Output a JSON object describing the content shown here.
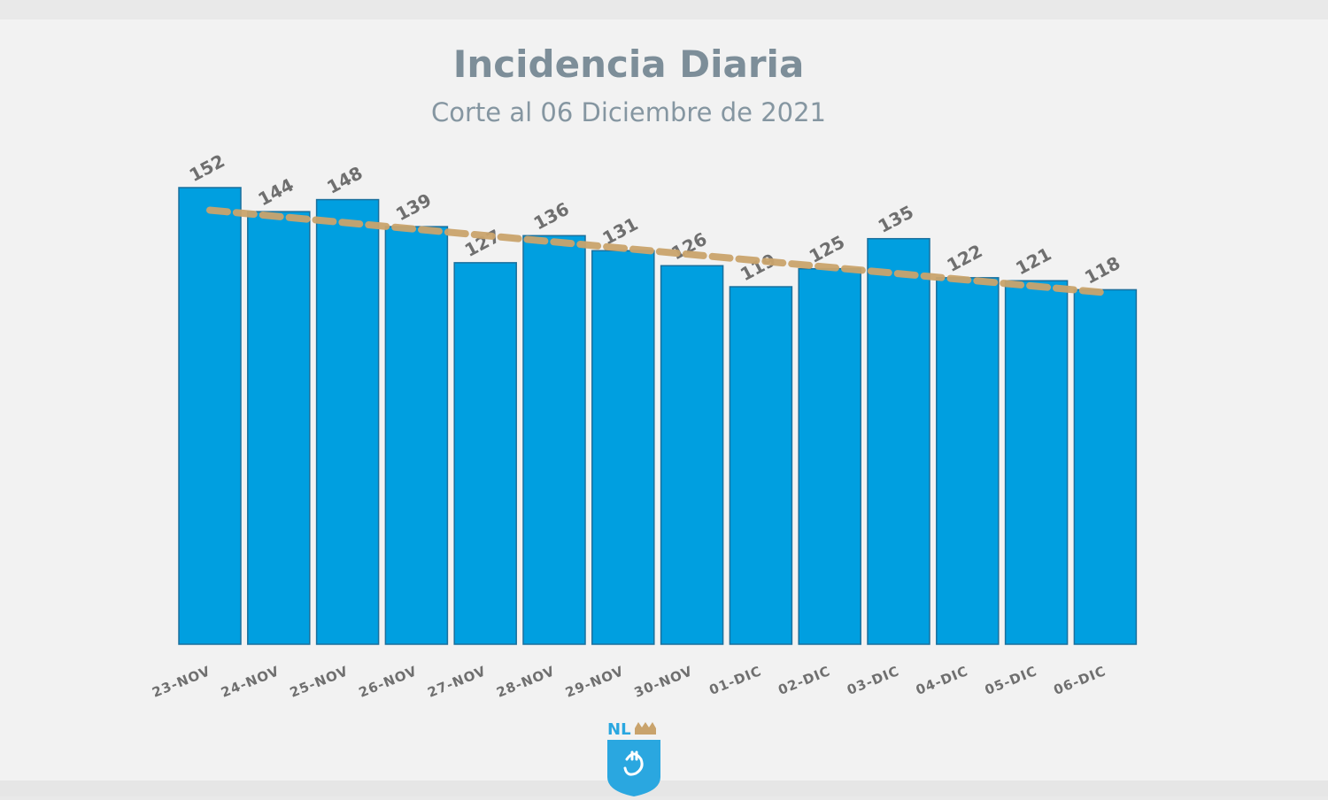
{
  "title": "Incidencia Diaria",
  "subtitle": "Corte al 06 Diciembre de 2021",
  "logo": {
    "text": "NL",
    "icon": "crown-shield-icon"
  },
  "colors": {
    "bar": "#009fe0",
    "bar_border": "#1a6f9c",
    "trend": "#c9a36c",
    "title": "#7d8e99",
    "background": "#f2f2f2"
  },
  "chart_data": {
    "type": "bar",
    "title": "Incidencia Diaria",
    "subtitle": "Corte al 06 Diciembre de 2021",
    "categories": [
      "23-NOV",
      "24-NOV",
      "25-NOV",
      "26-NOV",
      "27-NOV",
      "28-NOV",
      "29-NOV",
      "30-NOV",
      "01-DIC",
      "02-DIC",
      "03-DIC",
      "04-DIC",
      "05-DIC",
      "06-DIC"
    ],
    "values": [
      152,
      144,
      148,
      139,
      127,
      136,
      131,
      126,
      119,
      125,
      135,
      122,
      121,
      118
    ],
    "value_labels": [
      "152",
      "144",
      "148",
      "139",
      "127",
      "136",
      "131",
      "126",
      "119",
      "125",
      "135",
      "122",
      "121",
      "118"
    ],
    "trendline": {
      "type": "linear",
      "style": "dashed"
    },
    "ylim": [
      0,
      152
    ],
    "grid": false,
    "legend": "none"
  }
}
